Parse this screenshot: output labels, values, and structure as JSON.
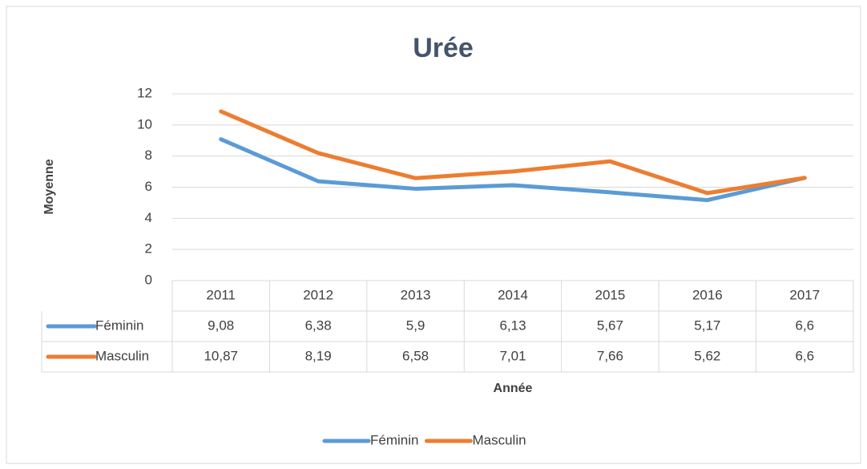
{
  "chart_data": {
    "type": "line",
    "title": "Urée",
    "y_label": "Moyenne",
    "x_label": "Année",
    "categories": [
      "2011",
      "2012",
      "2013",
      "2014",
      "2015",
      "2016",
      "2017"
    ],
    "series": [
      {
        "name": "Féminin",
        "color": "#5b9bd5",
        "values": [
          9.08,
          6.38,
          5.9,
          6.13,
          5.67,
          5.17,
          6.6
        ],
        "value_labels": [
          "9,08",
          "6,38",
          "5,9",
          "6,13",
          "5,67",
          "5,17",
          "6,6"
        ]
      },
      {
        "name": "Masculin",
        "color": "#ed7d31",
        "values": [
          10.87,
          8.19,
          6.58,
          7.01,
          7.66,
          5.62,
          6.6
        ],
        "value_labels": [
          "10,87",
          "8,19",
          "6,58",
          "7,01",
          "7,66",
          "5,62",
          "6,6"
        ]
      }
    ],
    "ylim": [
      0,
      12
    ],
    "yticks": [
      0,
      2,
      4,
      6,
      8,
      10,
      12
    ],
    "grid": true,
    "legend": "bottom"
  }
}
